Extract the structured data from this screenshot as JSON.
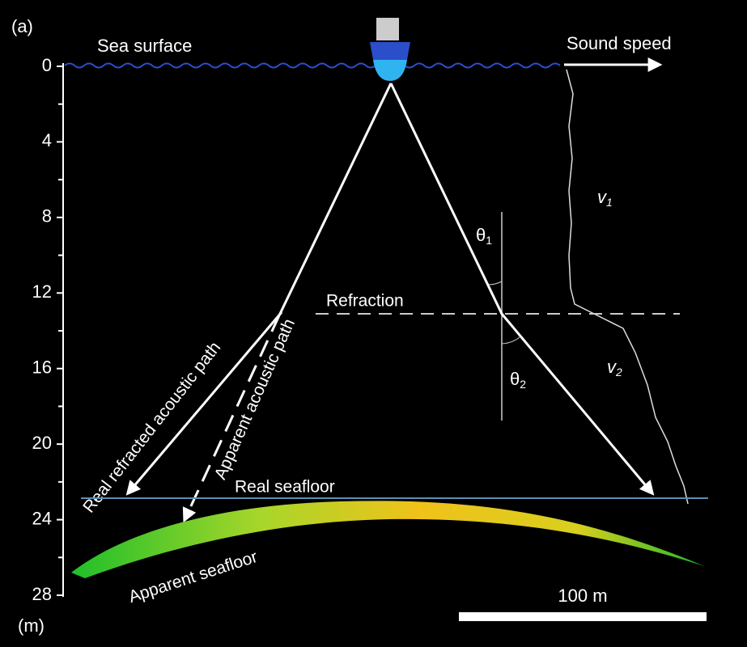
{
  "panel_label": "(a)",
  "sea_surface": "Sea surface",
  "sound_speed": "Sound speed",
  "refraction": "Refraction",
  "real_seafloor": "Real seafloor",
  "apparent_seafloor": "Apparent seafloor",
  "real_path": "Real refracted acoustic path",
  "apparent_path": "Apparent acoustic path",
  "theta1": {
    "symbol": "θ",
    "subscript": "1"
  },
  "theta2": {
    "symbol": "θ",
    "subscript": "2"
  },
  "v1": {
    "symbol": "v",
    "subscript": "1"
  },
  "v2": {
    "symbol": "v",
    "subscript": "2"
  },
  "depth_axis": {
    "ticks": [
      0,
      4,
      8,
      12,
      16,
      20,
      24,
      28
    ],
    "unit": "(m)"
  },
  "scale_bar": "100 m"
}
